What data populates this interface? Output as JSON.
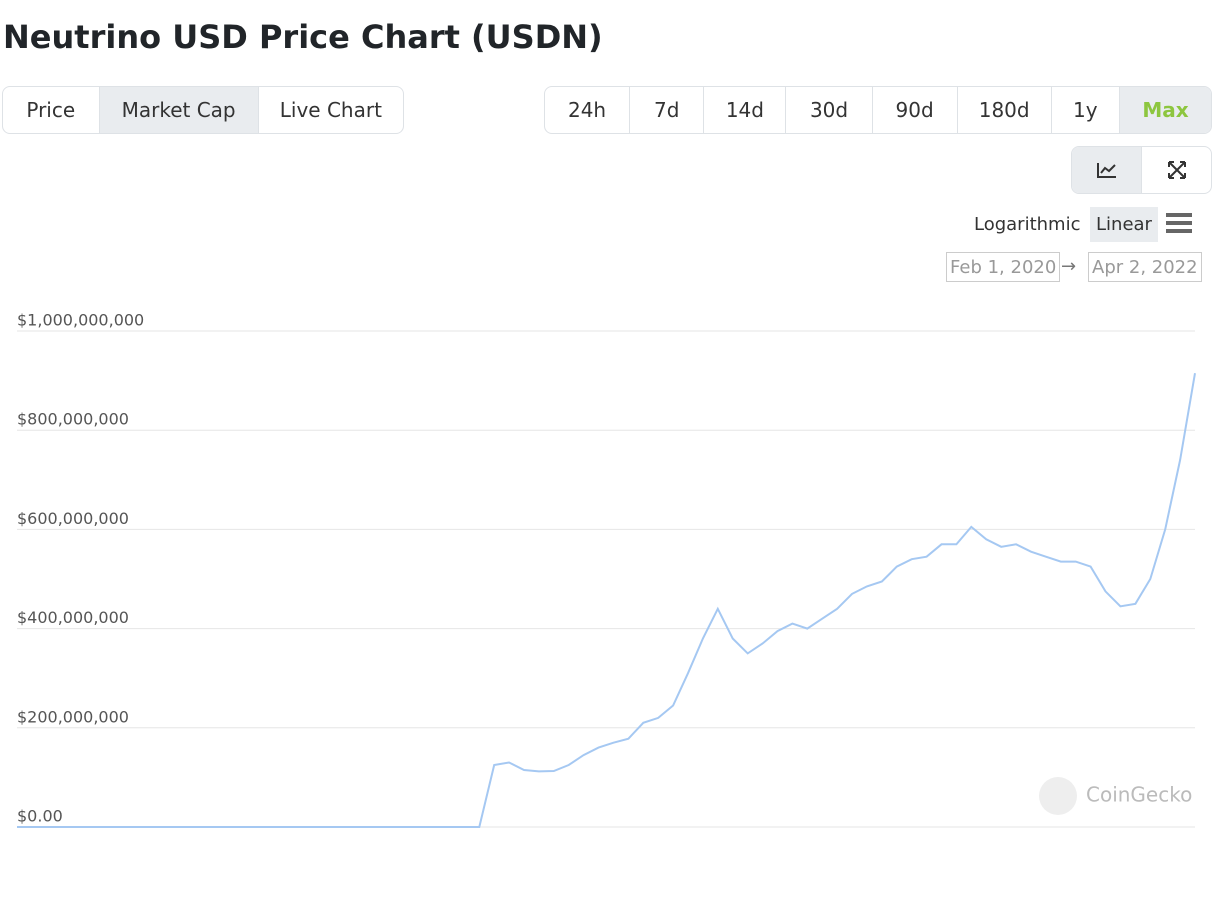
{
  "header": {
    "title": "Neutrino USD Price Chart (USDN)"
  },
  "tabs": {
    "items": [
      "Price",
      "Market Cap",
      "Live Chart"
    ],
    "active": 1
  },
  "ranges": {
    "items": [
      "24h",
      "7d",
      "14d",
      "30d",
      "90d",
      "180d",
      "1y",
      "Max"
    ],
    "active": 7
  },
  "scale": {
    "items": [
      "Logarithmic",
      "Linear"
    ],
    "active": 1
  },
  "date_range": {
    "from": "Feb 1, 2020",
    "arrow": "→",
    "to": "Apr 2, 2022"
  },
  "watermark": "CoinGecko",
  "chart_data": {
    "type": "line",
    "color": "#a5c8f2",
    "grid": true,
    "ylim": [
      0,
      1000000000
    ],
    "yticks": [
      {
        "value": 0,
        "label": "$0.00"
      },
      {
        "value": 200000000,
        "label": "$200,000,000"
      },
      {
        "value": 400000000,
        "label": "$400,000,000"
      },
      {
        "value": 600000000,
        "label": "$600,000,000"
      },
      {
        "value": 800000000,
        "label": "$800,000,000"
      },
      {
        "value": 1000000000,
        "label": "$1,000,000,000"
      }
    ],
    "values": [
      0,
      0,
      0,
      0,
      0,
      0,
      0,
      0,
      0,
      0,
      0,
      0,
      0,
      0,
      0,
      0,
      0,
      0,
      0,
      0,
      0,
      0,
      0,
      0,
      0,
      0,
      0,
      0,
      0,
      0,
      0,
      0,
      125000000,
      130000000,
      115000000,
      112000000,
      113000000,
      125000000,
      145000000,
      160000000,
      170000000,
      178000000,
      210000000,
      220000000,
      245000000,
      310000000,
      380000000,
      440000000,
      380000000,
      350000000,
      370000000,
      395000000,
      410000000,
      400000000,
      420000000,
      440000000,
      470000000,
      485000000,
      495000000,
      525000000,
      540000000,
      545000000,
      570000000,
      570000000,
      605000000,
      580000000,
      565000000,
      570000000,
      555000000,
      545000000,
      535000000,
      535000000,
      525000000,
      475000000,
      445000000,
      450000000,
      500000000,
      600000000,
      740000000,
      915000000
    ]
  }
}
